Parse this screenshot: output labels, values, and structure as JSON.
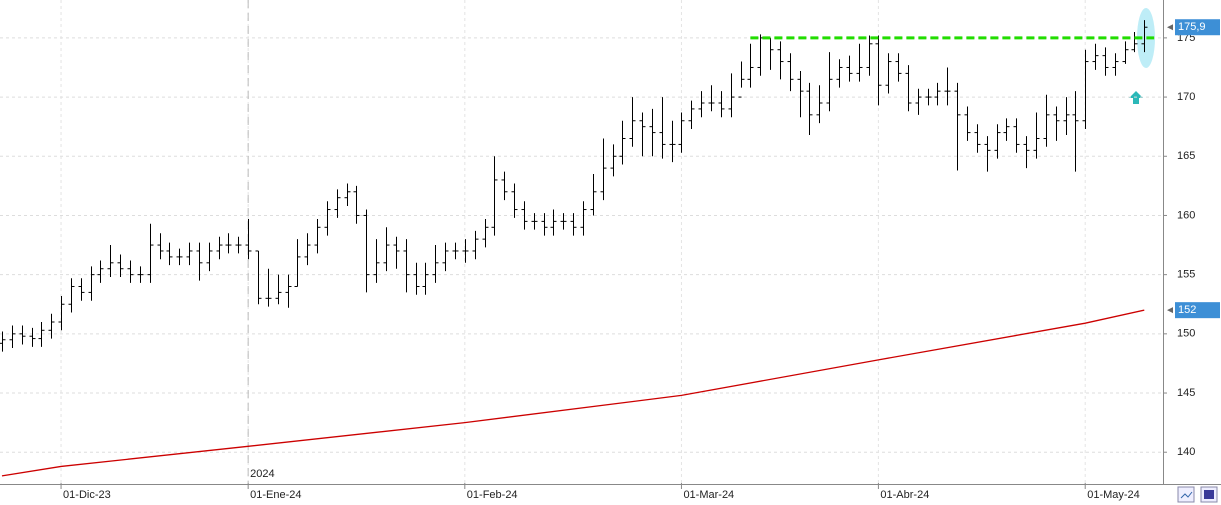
{
  "chart_data": {
    "type": "ohlc",
    "color": "#000000",
    "ylim": [
      137.4,
      178.2
    ],
    "yticks": [
      140,
      145,
      150,
      155,
      160,
      165,
      170,
      175
    ],
    "xlim": [
      -0.2,
      117.9
    ],
    "xticks": [
      {
        "value": 6,
        "label": "01-Dic-23"
      },
      {
        "value": 25,
        "label": "01-Ene-24"
      },
      {
        "value": 47,
        "label": "01-Feb-24"
      },
      {
        "value": 69,
        "label": "01-Mar-24"
      },
      {
        "value": 89,
        "label": "01-Abr-24"
      },
      {
        "value": 110,
        "label": "01-May-24"
      }
    ],
    "year_marker": {
      "value": 25,
      "label": "2024"
    },
    "grid": true,
    "ohlc": {
      "open": [
        149.2,
        149.5,
        150,
        149.8,
        149.6,
        150.3,
        151,
        152.5,
        154,
        153.5,
        155,
        155.5,
        156,
        155.5,
        155,
        155,
        157.5,
        157,
        156.5,
        156.5,
        157,
        156,
        157,
        157.5,
        157.5,
        157.5,
        157,
        153,
        153,
        153.5,
        154,
        156.5,
        157.5,
        159,
        160.5,
        161.5,
        162,
        160,
        155,
        156,
        157.5,
        157,
        155,
        154,
        155,
        156,
        157,
        157,
        157,
        158,
        159,
        163,
        162,
        160.5,
        159.5,
        159.5,
        159,
        159.5,
        159.5,
        159,
        160.5,
        162,
        164,
        165,
        166.5,
        168,
        167.5,
        167,
        166,
        166,
        168,
        169,
        169.5,
        169.5,
        169,
        170,
        171.5,
        172.5,
        175,
        174,
        173,
        171.5,
        170.5,
        168.5,
        169.5,
        171.5,
        172.5,
        172,
        172.5,
        174.5,
        171,
        173,
        172,
        169.5,
        170,
        170,
        170.5,
        170.5,
        168.5,
        167,
        166,
        165.5,
        167,
        167.5,
        166,
        165.5,
        166.5,
        168.5,
        168,
        168.5,
        168,
        173,
        173.5,
        172.5,
        173,
        174,
        174.5
      ],
      "high": [
        150.2,
        150.7,
        150.7,
        150.5,
        151,
        151.7,
        153.2,
        154.7,
        154.7,
        155.7,
        156.2,
        157.5,
        156.7,
        156.2,
        155.7,
        159.3,
        158.5,
        157.7,
        157.2,
        157.7,
        157.7,
        157.7,
        158.2,
        158.5,
        158.2,
        159.7,
        157,
        155.5,
        155,
        155,
        158,
        158.5,
        159.7,
        161.2,
        162.2,
        162.7,
        162.5,
        160.5,
        158,
        159,
        158.2,
        158,
        156,
        156,
        157.5,
        157.7,
        157.7,
        158,
        158.7,
        159.7,
        165,
        163.7,
        162.7,
        161.2,
        160.2,
        160.2,
        160.5,
        160.2,
        160.2,
        161.2,
        163.5,
        166.5,
        166,
        168,
        170,
        168.7,
        169,
        170,
        168,
        168.7,
        169.7,
        170.5,
        171,
        170.5,
        172,
        173,
        174.5,
        175.3,
        175,
        174.7,
        173.7,
        172.2,
        171.2,
        171,
        173.8,
        173.2,
        173.5,
        174.5,
        175.2,
        175.2,
        173.7,
        173.7,
        172.7,
        170.7,
        170.7,
        171.2,
        172.5,
        171.2,
        169.2,
        167.7,
        166.7,
        167.7,
        168.2,
        168.2,
        166.7,
        168.7,
        170.2,
        169.2,
        170,
        170.5,
        174,
        174.5,
        174.2,
        173.7,
        174.7,
        175.5,
        176.5
      ],
      "low": [
        148.5,
        148.8,
        149.1,
        148.9,
        148.9,
        149.6,
        150.3,
        151.8,
        152.8,
        152.8,
        154.3,
        154.8,
        154.8,
        154.3,
        154.3,
        154.3,
        156.3,
        155.8,
        155.8,
        155.8,
        154.5,
        155.3,
        156.3,
        156.8,
        156.8,
        156.3,
        152.5,
        152.3,
        152.5,
        152.2,
        154,
        155.8,
        156.8,
        158.3,
        159.8,
        160.8,
        159.3,
        153.5,
        154.3,
        155.3,
        155.5,
        153.5,
        153.3,
        153.3,
        154.3,
        155.3,
        156.3,
        156,
        156.3,
        157.3,
        158.3,
        161.3,
        159.8,
        158.8,
        158.8,
        158.3,
        158.3,
        158.8,
        158.3,
        158.3,
        160,
        161.3,
        163.3,
        164.3,
        165.8,
        165,
        165,
        164.8,
        164.5,
        165.3,
        167.3,
        168.3,
        168.8,
        168.3,
        168.3,
        170.8,
        170.8,
        171.8,
        172.3,
        171.5,
        170.5,
        168.3,
        166.8,
        167.8,
        168.8,
        170.8,
        171.3,
        171.3,
        171.8,
        169.3,
        170.3,
        171.3,
        168.8,
        168.5,
        169.3,
        169.3,
        169.3,
        163.8,
        166.3,
        165.3,
        163.7,
        164.8,
        166.3,
        165.3,
        164,
        164.8,
        165.8,
        166.3,
        166.8,
        163.7,
        167.3,
        172.3,
        171.8,
        171.8,
        172.8,
        173.8,
        173.8
      ],
      "close": [
        149.5,
        150,
        149.8,
        149.6,
        150.3,
        151,
        152.5,
        154,
        153.5,
        155,
        155.5,
        156,
        155.5,
        155,
        155,
        157.5,
        157,
        156.5,
        156.5,
        157,
        156,
        157,
        157.5,
        157.5,
        157.5,
        157,
        153,
        153,
        153.5,
        154,
        156.5,
        157.5,
        159,
        160.5,
        161.5,
        162,
        160,
        155,
        156,
        157.5,
        157,
        155,
        154,
        155,
        156,
        157,
        157,
        157,
        158,
        159,
        163,
        162,
        160.5,
        159.5,
        159.5,
        159,
        159.5,
        159.5,
        159,
        160.5,
        162,
        164,
        165,
        166.5,
        168,
        167.5,
        167,
        166,
        166,
        168,
        169,
        169.5,
        169.5,
        169,
        170,
        171.5,
        172.5,
        175,
        174,
        173,
        171.5,
        170.5,
        168.5,
        169.5,
        171.5,
        172.5,
        172,
        172.5,
        174.5,
        171,
        173,
        172,
        169.5,
        170,
        170,
        170.5,
        170.5,
        168.5,
        167,
        166,
        165.5,
        167,
        167.5,
        166,
        165.5,
        166.5,
        168.5,
        168,
        168.5,
        168,
        173,
        173.5,
        172.5,
        173,
        174,
        174.5,
        175.9
      ]
    },
    "moving_average": {
      "color": "#cc0000",
      "x": [
        0,
        6,
        25,
        47,
        69,
        89,
        110,
        116
      ],
      "values": [
        138,
        138.8,
        140.5,
        142.5,
        144.8,
        147.8,
        150.9,
        152
      ]
    },
    "resistance": {
      "color": "#22dd00",
      "value": 175,
      "x": [
        76,
        117
      ]
    },
    "price_tag": {
      "value": 175.9,
      "label": "175,9",
      "color": "#3d8fd6"
    },
    "ma_tag": {
      "value": 152,
      "label": "152",
      "color": "#3d8fd6"
    }
  }
}
